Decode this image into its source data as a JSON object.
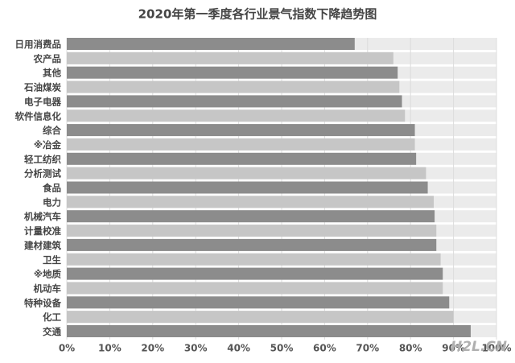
{
  "chart_data": {
    "type": "hbar",
    "title": "2020年第一季度各行业景气指数下降趋势图",
    "categories": [
      "日用消费品",
      "农产品",
      "其他",
      "石油煤炭",
      "电子电器",
      "软件信息化",
      "综合",
      "※冶金",
      "轻工纺织",
      "分析测试",
      "食品",
      "电力",
      "机械汽车",
      "计量校准",
      "建材建筑",
      "卫生",
      "※地质",
      "机动车",
      "特种设备",
      "化工",
      "交通"
    ],
    "values": [
      67,
      76,
      77,
      77.4,
      78,
      78.7,
      81,
      81,
      81.3,
      83.6,
      84,
      85.4,
      85.6,
      86,
      86,
      87,
      87.5,
      87.5,
      89,
      90,
      94
    ],
    "colors": [
      "#8c8c8c",
      "#c6c6c6"
    ],
    "track_color": "#ebebeb",
    "xlim": [
      0,
      100
    ],
    "xticks": [
      {
        "value": 0,
        "label": "0%"
      },
      {
        "value": 10,
        "label": "10%"
      },
      {
        "value": 20,
        "label": "20%"
      },
      {
        "value": 30,
        "label": "30%"
      },
      {
        "value": 40,
        "label": "40%"
      },
      {
        "value": 50,
        "label": "50%"
      },
      {
        "value": 60,
        "label": "60%"
      },
      {
        "value": 70,
        "label": "70%"
      },
      {
        "value": 80,
        "label": "80%"
      },
      {
        "value": 90,
        "label": "90%"
      },
      {
        "value": 100,
        "label": "100%"
      }
    ],
    "grid": true,
    "watermark": "H2L.CN"
  }
}
